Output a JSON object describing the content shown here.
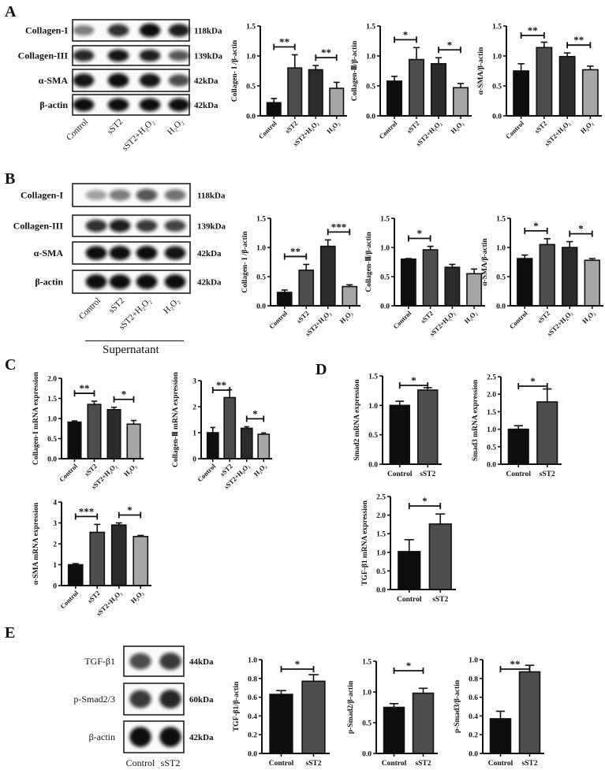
{
  "panels": [
    "A",
    "B",
    "C",
    "D",
    "E"
  ],
  "colors": {
    "bars4": [
      "#0d0d0d",
      "#4d4d4d",
      "#2b2b2b",
      "#a6a6a6"
    ],
    "bars2": [
      "#0d0d0d",
      "#4d4d4d"
    ],
    "band": "#0a0a0a",
    "axis": "#111111"
  },
  "blots": [
    {
      "panel": "A",
      "lanes": [
        "Control",
        "sST2",
        "sST2+H₂O₂",
        "H₂O₂"
      ],
      "rows": [
        {
          "label": "Collagen-I",
          "kda": "118kDa",
          "bands": [
            0.35,
            0.75,
            1.0,
            0.85
          ]
        },
        {
          "label": "Collagen-III",
          "kda": "139kDa",
          "bands": [
            0.8,
            0.9,
            0.85,
            0.55
          ]
        },
        {
          "label": "α-SMA",
          "kda": "42kDa",
          "bands": [
            0.9,
            1.0,
            0.9,
            0.6
          ]
        },
        {
          "label": "β-actin",
          "kda": "42kDa",
          "bands": [
            1.0,
            1.0,
            1.0,
            1.0
          ]
        }
      ]
    },
    {
      "panel": "B",
      "lanes": [
        "Control",
        "sST2",
        "sST2+H₂O₂",
        "H₂O₂"
      ],
      "group_label": "Supernatant",
      "rows": [
        {
          "label": "Collagen-I",
          "kda": "118kDa",
          "bands": [
            0.15,
            0.35,
            0.55,
            0.4
          ]
        },
        {
          "label": "Collagen-III",
          "kda": "139kDa",
          "bands": [
            0.75,
            0.85,
            0.7,
            0.65
          ]
        },
        {
          "label": "α-SMA",
          "kda": "42kDa",
          "bands": [
            0.95,
            1.0,
            1.0,
            0.9
          ]
        },
        {
          "label": "β-actin",
          "kda": "42kDa",
          "bands": [
            1.0,
            1.0,
            1.0,
            1.0
          ]
        }
      ]
    },
    {
      "panel": "E",
      "lanes": [
        "Control",
        "sST2"
      ],
      "rows": [
        {
          "label": "TGF-β1",
          "kda": "44kDa",
          "bands": [
            0.6,
            0.7
          ]
        },
        {
          "label": "p-Smad2/3",
          "kda": "60kDa",
          "bands": [
            0.7,
            0.8
          ]
        },
        {
          "label": "β-actin",
          "kda": "42kDa",
          "bands": [
            1.0,
            1.0
          ]
        }
      ]
    }
  ],
  "chart_data": [
    {
      "panel": "A",
      "type": "bar",
      "ylabel": "Collagen- I /β-actin",
      "categories": [
        "Control",
        "sST2",
        "sST2+H₂O₂",
        "H₂O₂"
      ],
      "values": [
        0.22,
        0.8,
        0.77,
        0.46
      ],
      "errors": [
        0.07,
        0.22,
        0.07,
        0.1
      ],
      "ylim": [
        0,
        1.5
      ],
      "yticks": [
        "0.0",
        "0.5",
        "1.0",
        "1.5"
      ],
      "significance": [
        {
          "from": 0,
          "to": 1,
          "label": "**"
        },
        {
          "from": 2,
          "to": 3,
          "label": "**"
        }
      ]
    },
    {
      "panel": "A",
      "type": "bar",
      "ylabel": "Collagen-Ⅲ/β-actin",
      "categories": [
        "Control",
        "sST2",
        "sST2+H₂O₂",
        "H₂O₂"
      ],
      "values": [
        0.58,
        0.94,
        0.87,
        0.47
      ],
      "errors": [
        0.08,
        0.2,
        0.1,
        0.07
      ],
      "ylim": [
        0,
        1.5
      ],
      "yticks": [
        "0.0",
        "0.5",
        "1.0",
        "1.5"
      ],
      "significance": [
        {
          "from": 0,
          "to": 1,
          "label": "*"
        },
        {
          "from": 2,
          "to": 3,
          "label": "*"
        }
      ]
    },
    {
      "panel": "A",
      "type": "bar",
      "ylabel": "α-SMA/β-actin",
      "categories": [
        "Control",
        "sST2",
        "sST2+H₂O₂",
        "H₂O₂"
      ],
      "values": [
        0.75,
        1.14,
        0.99,
        0.77
      ],
      "errors": [
        0.12,
        0.09,
        0.06,
        0.06
      ],
      "ylim": [
        0,
        1.5
      ],
      "yticks": [
        "0.0",
        "0.5",
        "1.0",
        "1.5"
      ],
      "significance": [
        {
          "from": 0,
          "to": 1,
          "label": "**"
        },
        {
          "from": 2,
          "to": 3,
          "label": "**"
        }
      ]
    },
    {
      "panel": "B",
      "type": "bar",
      "ylabel": "Collagen- I /β-actin",
      "categories": [
        "Control",
        "sST2",
        "sST2+H₂O₂",
        "H₂O₂"
      ],
      "values": [
        0.23,
        0.61,
        1.02,
        0.33
      ],
      "errors": [
        0.04,
        0.1,
        0.11,
        0.03
      ],
      "ylim": [
        0,
        1.5
      ],
      "yticks": [
        "0.0",
        "0.5",
        "1.0",
        "1.5"
      ],
      "significance": [
        {
          "from": 0,
          "to": 1,
          "label": "**"
        },
        {
          "from": 2,
          "to": 3,
          "label": "***"
        }
      ]
    },
    {
      "panel": "B",
      "type": "bar",
      "ylabel": "Collagen-Ⅲ/β-actin",
      "categories": [
        "Control",
        "sST2",
        "sST2+H₂O₂",
        "H₂O₂"
      ],
      "values": [
        0.8,
        0.96,
        0.66,
        0.55
      ],
      "errors": [
        0.01,
        0.06,
        0.05,
        0.08
      ],
      "ylim": [
        0,
        1.5
      ],
      "yticks": [
        "0.0",
        "0.5",
        "1.0",
        "1.5"
      ],
      "significance": [
        {
          "from": 0,
          "to": 1,
          "label": "*"
        }
      ]
    },
    {
      "panel": "B",
      "type": "bar",
      "ylabel": "α-SMA/β-actin",
      "categories": [
        "Control",
        "sST2",
        "sST2+H₂O₂",
        "H₂O₂"
      ],
      "values": [
        0.81,
        1.05,
        1.0,
        0.78
      ],
      "errors": [
        0.06,
        0.1,
        0.1,
        0.03
      ],
      "ylim": [
        0,
        1.5
      ],
      "yticks": [
        "0.0",
        "0.5",
        "1.0",
        "1.5"
      ],
      "significance": [
        {
          "from": 0,
          "to": 1,
          "label": "*"
        },
        {
          "from": 2,
          "to": 3,
          "label": "*"
        }
      ]
    },
    {
      "panel": "C",
      "type": "bar",
      "ylabel": "Collagen-I mRNA expression",
      "categories": [
        "Control",
        "sST2",
        "sST2+H₂O₂",
        "H₂O₂"
      ],
      "values": [
        0.91,
        1.35,
        1.22,
        0.86
      ],
      "errors": [
        0.03,
        0.08,
        0.06,
        0.09
      ],
      "ylim": [
        0,
        2.0
      ],
      "yticks": [
        "0.0",
        "0.5",
        "1.0",
        "1.5",
        "2.0"
      ],
      "significance": [
        {
          "from": 0,
          "to": 1,
          "label": "**"
        },
        {
          "from": 2,
          "to": 3,
          "label": "*"
        }
      ]
    },
    {
      "panel": "C",
      "type": "bar",
      "ylabel": "Collagen-Ⅲ mRNA expression",
      "categories": [
        "Control",
        "sST2",
        "sST2+H₂O₂",
        "H₂O₂"
      ],
      "values": [
        1.0,
        2.35,
        1.17,
        0.94
      ],
      "errors": [
        0.2,
        0.3,
        0.06,
        0.05
      ],
      "ylim": [
        0,
        3
      ],
      "yticks": [
        "0",
        "1",
        "2",
        "3"
      ],
      "significance": [
        {
          "from": 0,
          "to": 1,
          "label": "**"
        },
        {
          "from": 2,
          "to": 3,
          "label": "*"
        }
      ]
    },
    {
      "panel": "C",
      "type": "bar",
      "ylabel": "α-SMA mRNA expression",
      "categories": [
        "Control",
        "sST2",
        "sST2+H₂O₂",
        "H₂O₂"
      ],
      "values": [
        1.0,
        2.55,
        2.9,
        2.35
      ],
      "errors": [
        0.05,
        0.38,
        0.1,
        0.05
      ],
      "ylim": [
        0,
        4
      ],
      "yticks": [
        "0",
        "1",
        "2",
        "3",
        "4"
      ],
      "significance": [
        {
          "from": 0,
          "to": 1,
          "label": "***"
        },
        {
          "from": 2,
          "to": 3,
          "label": "*"
        }
      ]
    },
    {
      "panel": "D",
      "type": "bar",
      "ylabel": "Smad2 mRNA expression",
      "categories": [
        "Control",
        "sST2"
      ],
      "values": [
        1.0,
        1.26
      ],
      "errors": [
        0.07,
        0.04
      ],
      "ylim": [
        0,
        1.5
      ],
      "yticks": [
        "0.0",
        "0.5",
        "1.0",
        "1.5"
      ],
      "significance": [
        {
          "from": 0,
          "to": 1,
          "label": "*"
        }
      ]
    },
    {
      "panel": "D",
      "type": "bar",
      "ylabel": "Smad3 mRNA expression",
      "categories": [
        "Control",
        "sST2"
      ],
      "values": [
        1.0,
        1.78
      ],
      "errors": [
        0.1,
        0.37
      ],
      "ylim": [
        0,
        2.5
      ],
      "yticks": [
        "0.0",
        "0.5",
        "1.0",
        "1.5",
        "2.0",
        "2.5"
      ],
      "significance": [
        {
          "from": 0,
          "to": 1,
          "label": "*"
        }
      ]
    },
    {
      "panel": "D",
      "type": "bar",
      "ylabel": "TGF-β1 mRNA expression",
      "categories": [
        "Control",
        "sST2"
      ],
      "values": [
        1.02,
        1.76
      ],
      "errors": [
        0.32,
        0.27
      ],
      "ylim": [
        0,
        2.5
      ],
      "yticks": [
        "0.0",
        "0.5",
        "1.0",
        "1.5",
        "2.0",
        "2.5"
      ],
      "significance": [
        {
          "from": 0,
          "to": 1,
          "label": "*"
        }
      ]
    },
    {
      "panel": "E",
      "type": "bar",
      "ylabel": "TGF-β1/β-actin",
      "categories": [
        "Control",
        "sST2"
      ],
      "values": [
        0.63,
        0.77
      ],
      "errors": [
        0.04,
        0.07
      ],
      "ylim": [
        0,
        1.0
      ],
      "yticks": [
        "0.0",
        "0.2",
        "0.4",
        "0.6",
        "0.8",
        "1.0"
      ],
      "significance": [
        {
          "from": 0,
          "to": 1,
          "label": "*"
        }
      ]
    },
    {
      "panel": "E",
      "type": "bar",
      "ylabel": "p-Smad2/β-actin",
      "categories": [
        "Control",
        "sST2"
      ],
      "values": [
        0.75,
        0.98
      ],
      "errors": [
        0.06,
        0.08
      ],
      "ylim": [
        0,
        1.5
      ],
      "yticks": [
        "0.0",
        "0.5",
        "1.0",
        "1.5"
      ],
      "significance": [
        {
          "from": 0,
          "to": 1,
          "label": "*"
        }
      ]
    },
    {
      "panel": "E",
      "type": "bar",
      "ylabel": "p-Smad3/β-actin",
      "categories": [
        "Control",
        "sST2"
      ],
      "values": [
        0.37,
        0.87
      ],
      "errors": [
        0.08,
        0.07
      ],
      "ylim": [
        0,
        1.0
      ],
      "yticks": [
        "0.0",
        "0.2",
        "0.4",
        "0.6",
        "0.8",
        "1.0"
      ],
      "significance": [
        {
          "from": 0,
          "to": 1,
          "label": "**"
        }
      ]
    }
  ]
}
